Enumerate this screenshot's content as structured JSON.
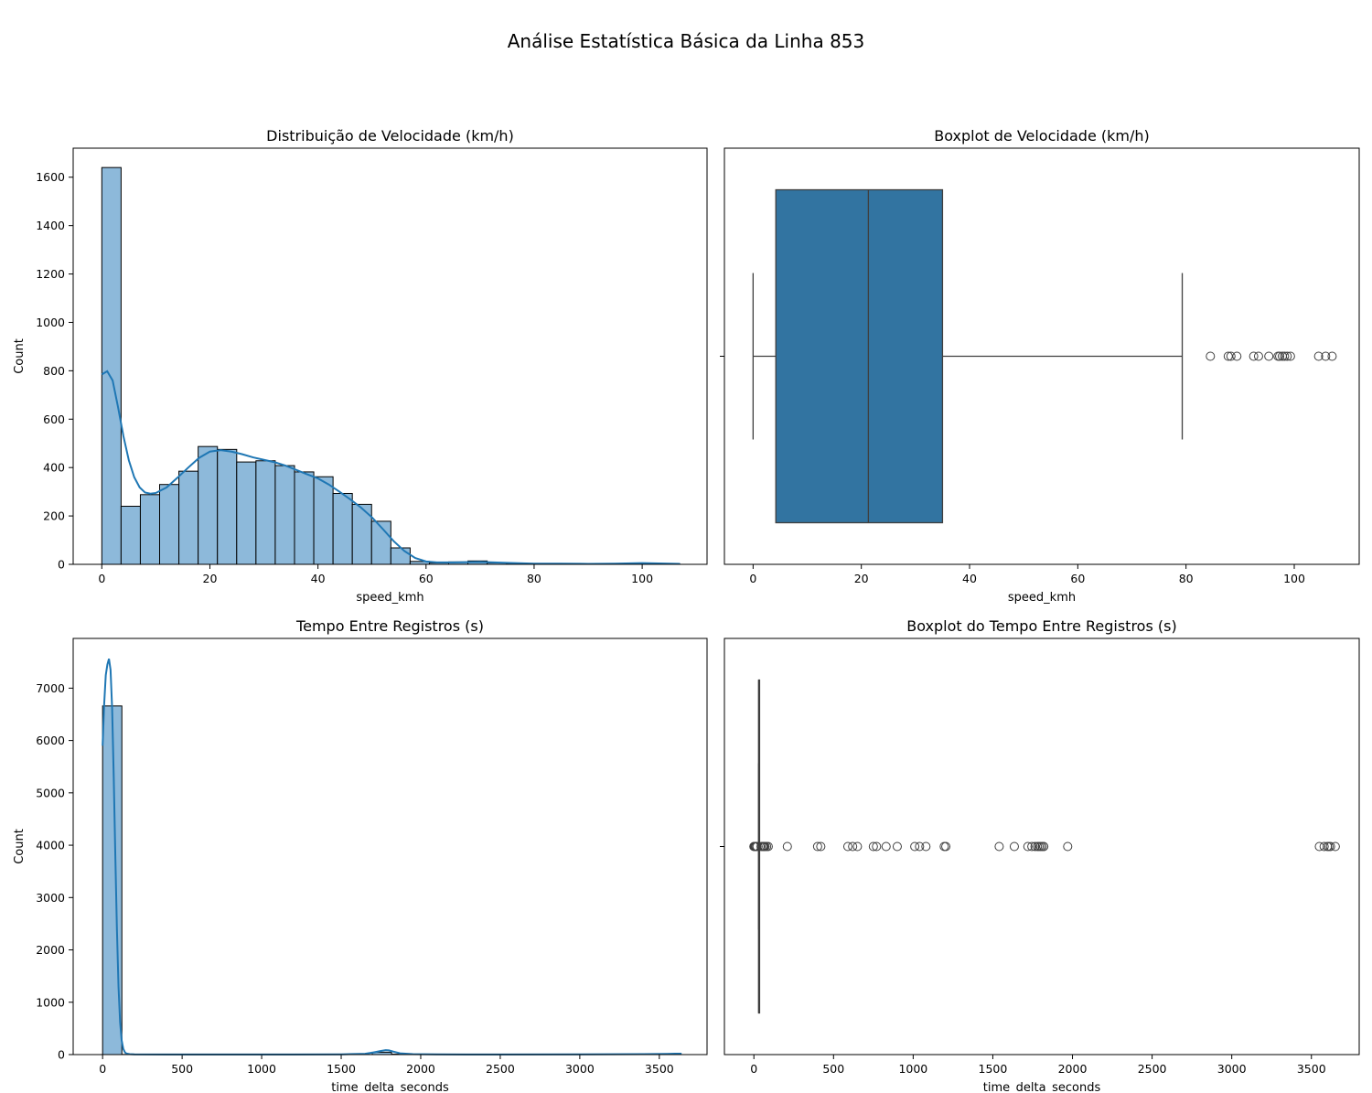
{
  "figure": {
    "suptitle": "Análise Estatística Básica da Linha 853"
  },
  "chart_data": [
    {
      "id": "hist_speed",
      "type": "bar",
      "title": "Distribuição de Velocidade (km/h)",
      "xlabel": "speed_kmh",
      "ylabel": "Count",
      "xlim": [
        -5.3,
        112.0
      ],
      "ylim": [
        0,
        1720
      ],
      "xticks": [
        0,
        20,
        40,
        60,
        80,
        100
      ],
      "yticks": [
        0,
        200,
        400,
        600,
        800,
        1000,
        1200,
        1400,
        1600
      ],
      "bin_start": 0,
      "bin_width": 3.566,
      "values": [
        1640,
        240,
        288,
        330,
        385,
        487,
        475,
        423,
        428,
        408,
        382,
        362,
        293,
        248,
        178,
        68,
        12,
        6,
        10,
        14,
        6,
        4,
        3,
        2,
        2,
        2,
        1,
        1,
        2,
        1
      ],
      "kde": {
        "x": [
          0,
          1,
          2,
          3,
          4,
          5,
          6,
          7,
          8,
          9,
          10,
          12,
          14,
          16,
          18,
          20,
          22,
          24,
          26,
          28,
          30,
          32,
          34,
          36,
          38,
          40,
          42,
          44,
          46,
          48,
          50,
          52,
          54,
          56,
          58,
          60,
          62,
          65,
          70,
          75,
          80,
          85,
          90,
          95,
          100,
          107
        ],
        "y": [
          785,
          798,
          760,
          650,
          530,
          430,
          360,
          318,
          297,
          292,
          295,
          318,
          358,
          400,
          440,
          466,
          472,
          466,
          455,
          442,
          432,
          422,
          408,
          390,
          372,
          355,
          330,
          300,
          268,
          234,
          194,
          146,
          96,
          55,
          26,
          12,
          8,
          8,
          10,
          6,
          3,
          3,
          2,
          3,
          5,
          2
        ]
      },
      "bar_color": "#8DB9DA",
      "kde_color": "#1F77B4"
    },
    {
      "id": "box_speed",
      "type": "boxplot",
      "title": "Boxplot de Velocidade (km/h)",
      "xlabel": "speed_kmh",
      "xlim": [
        -5.3,
        112.0
      ],
      "xticks": [
        0,
        20,
        40,
        60,
        80,
        100
      ],
      "stats": {
        "whislo": 0,
        "q1": 4.2,
        "median": 21.3,
        "q3": 35.0,
        "whishi": 79.3
      },
      "outliers": [
        84.5,
        87.8,
        88.3,
        89.4,
        92.5,
        93.4,
        95.3,
        97.0,
        97.3,
        97.8,
        98.2,
        98.7,
        99.3,
        104.5,
        105.8,
        107.0
      ],
      "box_color": "#3274A1"
    },
    {
      "id": "hist_time",
      "type": "bar",
      "title": "Tempo Entre Registros (s)",
      "xlabel": "time_delta_seconds",
      "ylabel": "Count",
      "xlim": [
        -185,
        3800
      ],
      "ylim": [
        0,
        7950
      ],
      "xticks": [
        0,
        500,
        1000,
        1500,
        2000,
        2500,
        3000,
        3500
      ],
      "yticks": [
        0,
        1000,
        2000,
        3000,
        4000,
        5000,
        6000,
        7000
      ],
      "bin_start": 0,
      "bin_width": 121.1,
      "values": [
        6660,
        3,
        2,
        3,
        6,
        2,
        2,
        1,
        2,
        5,
        1,
        0,
        0,
        0,
        45,
        8,
        4,
        0,
        0,
        0,
        0,
        0,
        0,
        0,
        0,
        0,
        0,
        0,
        0,
        15
      ],
      "kde": {
        "x": [
          0,
          10,
          20,
          30,
          40,
          50,
          60,
          70,
          80,
          90,
          100,
          110,
          120,
          130,
          140,
          150,
          170,
          200,
          400,
          800,
          1200,
          1500,
          1650,
          1700,
          1750,
          1780,
          1800,
          1830,
          1870,
          1950,
          2100,
          2500,
          3000,
          3400,
          3550,
          3600,
          3640
        ],
        "y": [
          5900,
          6700,
          7250,
          7450,
          7560,
          7350,
          6600,
          5300,
          3800,
          2400,
          1300,
          620,
          270,
          110,
          45,
          20,
          8,
          5,
          3,
          2,
          3,
          5,
          15,
          40,
          70,
          85,
          80,
          55,
          25,
          8,
          4,
          2,
          4,
          8,
          14,
          18,
          18
        ]
      },
      "bar_color": "#8DB9DA",
      "kde_color": "#1F77B4"
    },
    {
      "id": "box_time",
      "type": "boxplot",
      "title": "Boxplot do Tempo Entre Registros (s)",
      "xlabel": "time_delta_seconds",
      "xlim": [
        -185,
        3800
      ],
      "xticks": [
        0,
        500,
        1000,
        1500,
        2000,
        2500,
        3000,
        3500
      ],
      "stats": {
        "whislo": 30,
        "q1": 30,
        "median": 30,
        "q3": 31,
        "whishi": 31
      },
      "outliers": [
        0,
        3,
        6,
        10,
        14,
        20,
        45,
        55,
        60,
        65,
        70,
        80,
        90,
        210,
        400,
        420,
        590,
        620,
        650,
        750,
        770,
        830,
        900,
        1010,
        1040,
        1080,
        1195,
        1205,
        1540,
        1635,
        1720,
        1745,
        1765,
        1780,
        1790,
        1800,
        1810,
        1820,
        1970,
        3550,
        3580,
        3600,
        3610,
        3620,
        3650
      ],
      "box_color": "#3274A1"
    }
  ]
}
